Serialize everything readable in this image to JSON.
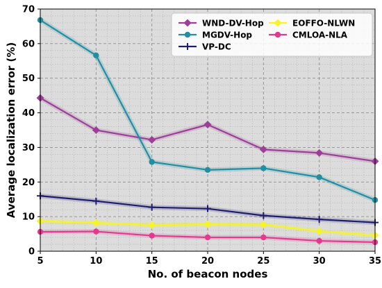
{
  "chart_data": {
    "type": "line",
    "title": "",
    "xlabel": "No. of beacon nodes",
    "ylabel": "Average localization error (%)",
    "x": [
      5,
      10,
      15,
      20,
      25,
      30,
      35
    ],
    "xlim": [
      5,
      35
    ],
    "ylim": [
      0,
      70
    ],
    "xticks": [
      5,
      10,
      15,
      20,
      25,
      30,
      35
    ],
    "yticks": [
      0,
      10,
      20,
      30,
      40,
      50,
      60,
      70
    ],
    "grid": true,
    "legend_position": "top-right",
    "series": [
      {
        "name": "WND-DV-Hop",
        "color": "#9c3f97",
        "marker": "diamond",
        "values": [
          44.3,
          35.0,
          32.2,
          36.6,
          29.4,
          28.4,
          26.0
        ]
      },
      {
        "name": "MGDV-Hop",
        "color": "#218ea1",
        "marker": "circle",
        "values": [
          66.8,
          56.6,
          25.8,
          23.5,
          24.0,
          21.4,
          14.8
        ]
      },
      {
        "name": "VP-DC",
        "color": "#1e1d6e",
        "marker": "plus",
        "values": [
          16.0,
          14.5,
          12.7,
          12.3,
          10.3,
          9.2,
          8.3
        ]
      },
      {
        "name": "EOFFO-NLWN",
        "color": "#f5f523",
        "marker": "diamond",
        "values": [
          8.7,
          8.2,
          7.6,
          7.8,
          7.7,
          5.8,
          4.6
        ]
      },
      {
        "name": "CMLOA-NLA",
        "color": "#e23a8f",
        "marker": "circle",
        "values": [
          5.6,
          5.7,
          4.5,
          4.0,
          4.0,
          3.0,
          2.6
        ]
      }
    ]
  }
}
